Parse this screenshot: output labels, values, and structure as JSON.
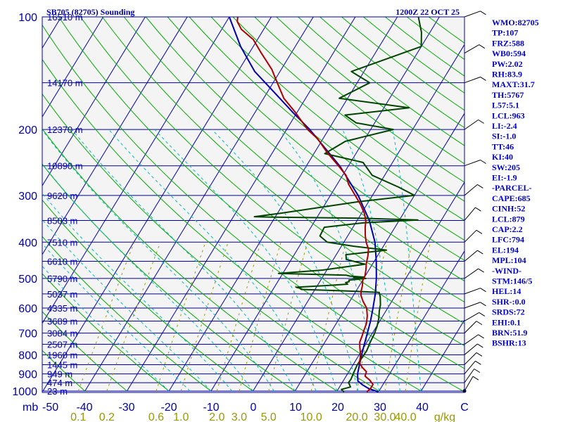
{
  "header": {
    "station": "SB705 (82705) Sounding",
    "time": "1200Z 22 OCT 25"
  },
  "indices": [
    "WMO:82705",
    "TP:107",
    "FRZ:588",
    "WB0:594",
    "PW:2.02",
    "RH:83.9",
    "MAXT:31.7",
    "TH:5767",
    "L57:5.1",
    "LCL:963",
    "LI:-2.4",
    "SI:-1.0",
    "TT:46",
    "KI:40",
    "SW:205",
    "EI:-1.9",
    "-PARCEL-",
    "CAPE:685",
    "CINH:52",
    "LCL:879",
    "CAP:2.2",
    "LFC:794",
    "EL:194",
    "MPL:104",
    "-WIND-",
    "STM:146/5",
    "HEL:14",
    "SHR-:0.0",
    "SRDS:72",
    "EHI:0.1",
    "BRN:51.9",
    "BSHR:13"
  ],
  "colors": {
    "isobar": "#0000aa",
    "isotherm": "#0000aa",
    "dry_adiabat": "#00aa00",
    "moist_adiabat": "#00bbbb",
    "mixing_ratio": "#999900",
    "temperature": "#aa0000",
    "dewpoint": "#004400",
    "parcel": "#0000aa",
    "wind": "#000000"
  },
  "chart_data": {
    "type": "line",
    "title": "SB705 (82705) Sounding",
    "pressure_axis": {
      "unit_label": "mb",
      "scale": "log",
      "range": [
        100,
        1000
      ],
      "ticks": [
        "100",
        "200",
        "300",
        "400",
        "500",
        "600",
        "700",
        "800",
        "900",
        "1000"
      ]
    },
    "temperature_axis": {
      "range": [
        -50,
        50
      ],
      "ticks": [
        "-50",
        "-40",
        "-30",
        "-20",
        "-10",
        "0",
        "10",
        "20",
        "30",
        "40",
        "C"
      ]
    },
    "mixing_ratio_axis": {
      "unit_label": "g/kg",
      "ticks": [
        "0.1",
        "0.2",
        "0.6",
        "1.0",
        "2.0",
        "3.0",
        "5.0",
        "10.0",
        "20.0",
        "30.0",
        "40.0"
      ]
    },
    "height_labels": [
      {
        "p": 100,
        "label": "16510 m"
      },
      {
        "p": 150,
        "label": "14170 m"
      },
      {
        "p": 200,
        "label": "12370 m"
      },
      {
        "p": 250,
        "label": "10890 m"
      },
      {
        "p": 300,
        "label": "9620 m"
      },
      {
        "p": 350,
        "label": "8503 m"
      },
      {
        "p": 400,
        "label": "7510 m"
      },
      {
        "p": 450,
        "label": "6610 m"
      },
      {
        "p": 500,
        "label": "5790 m"
      },
      {
        "p": 550,
        "label": "5037 m"
      },
      {
        "p": 600,
        "label": "4335 m"
      },
      {
        "p": 650,
        "label": "3689 m"
      },
      {
        "p": 700,
        "label": "3084 m"
      },
      {
        "p": 750,
        "label": "2507 m"
      },
      {
        "p": 800,
        "label": "1960 m"
      },
      {
        "p": 850,
        "label": "1445 m"
      },
      {
        "p": 900,
        "label": "949 m"
      },
      {
        "p": 950,
        "label": "474 m"
      },
      {
        "p": 1000,
        "label": "23 m"
      }
    ],
    "series": [
      {
        "key": "temperature",
        "points": [
          [
            1005,
            27.2
          ],
          [
            985,
            27.6
          ],
          [
            960,
            27.6
          ],
          [
            935,
            26.2
          ],
          [
            912,
            24.5
          ],
          [
            888,
            24.2
          ],
          [
            865,
            22.6
          ],
          [
            840,
            21.2
          ],
          [
            815,
            20.7
          ],
          [
            790,
            20
          ],
          [
            765,
            19.1
          ],
          [
            740,
            18.3
          ],
          [
            715,
            18
          ],
          [
            690,
            17.6
          ],
          [
            660,
            17.2
          ],
          [
            630,
            16.3
          ],
          [
            600,
            15
          ],
          [
            575,
            13.1
          ],
          [
            555,
            11.8
          ],
          [
            540,
            11.2
          ],
          [
            525,
            10.8
          ],
          [
            505,
            10
          ],
          [
            492,
            9.9
          ],
          [
            475,
            9.3
          ],
          [
            455,
            8.4
          ],
          [
            435,
            7.7
          ],
          [
            418,
            6.9
          ],
          [
            400,
            5.3
          ],
          [
            385,
            4.2
          ],
          [
            365,
            2.9
          ],
          [
            352,
            2.2
          ],
          [
            336,
            0.8
          ],
          [
            318,
            -1.4
          ],
          [
            300,
            -4.1
          ],
          [
            280,
            -7.3
          ],
          [
            265,
            -9.2
          ],
          [
            250,
            -12.4
          ],
          [
            230,
            -17.1
          ],
          [
            212,
            -21.2
          ],
          [
            200,
            -25
          ],
          [
            180,
            -30.4
          ],
          [
            165,
            -35.2
          ],
          [
            150,
            -39
          ],
          [
            138,
            -42.3
          ],
          [
            125,
            -47.1
          ],
          [
            115,
            -51
          ],
          [
            108,
            -55.3
          ],
          [
            103,
            -57.4
          ],
          [
            100,
            -58
          ]
        ]
      },
      {
        "key": "dewpoint",
        "points": [
          [
            1005,
            21.8
          ],
          [
            990,
            20.8
          ],
          [
            975,
            22.6
          ],
          [
            960,
            22
          ],
          [
            950,
            21.5
          ],
          [
            930,
            21.6
          ],
          [
            905,
            21.4
          ],
          [
            880,
            21.2
          ],
          [
            850,
            21
          ],
          [
            820,
            21.1
          ],
          [
            780,
            21.2
          ],
          [
            740,
            20.8
          ],
          [
            705,
            20.6
          ],
          [
            670,
            20.1
          ],
          [
            640,
            19.4
          ],
          [
            610,
            18.4
          ],
          [
            588,
            17.8
          ],
          [
            560,
            16.6
          ],
          [
            545,
            15.7
          ],
          [
            540,
            7.5
          ],
          [
            535,
            -3.3
          ],
          [
            531,
            -3.8
          ],
          [
            528,
            -4.8
          ],
          [
            522,
            2.9
          ],
          [
            518,
            7
          ],
          [
            513,
            6.3
          ],
          [
            510,
            7
          ],
          [
            505,
            6.7
          ],
          [
            500,
            10.5
          ],
          [
            498,
            7.5
          ],
          [
            496,
            10
          ],
          [
            493,
            6.4
          ],
          [
            490,
            5.3
          ],
          [
            485,
            -11
          ],
          [
            475,
            -1
          ],
          [
            458,
            8.2
          ],
          [
            445,
            3.1
          ],
          [
            432,
            2.3
          ],
          [
            420,
            11.3
          ],
          [
            410,
            2.8
          ],
          [
            400,
            -4
          ],
          [
            385,
            -6.6
          ],
          [
            365,
            -6.8
          ],
          [
            355,
            2
          ],
          [
            349,
            14.4
          ],
          [
            346,
            3.2
          ],
          [
            345,
            -1.1
          ],
          [
            343,
            -20
          ],
          [
            342,
            -25
          ],
          [
            335,
            -19.3
          ],
          [
            312,
            -2.5
          ],
          [
            300,
            10
          ],
          [
            285,
            5
          ],
          [
            265,
            -3
          ],
          [
            245,
            -7
          ],
          [
            232,
            -17.4
          ],
          [
            215,
            -14.3
          ],
          [
            200,
            -4.6
          ],
          [
            192,
            -14.4
          ],
          [
            183,
            -18.2
          ],
          [
            175,
            -4
          ],
          [
            165,
            -22
          ],
          [
            150,
            -17
          ],
          [
            140,
            -23
          ],
          [
            120,
            -10
          ],
          [
            110,
            -12
          ],
          [
            100,
            -15
          ]
        ]
      },
      {
        "key": "parcel",
        "points": [
          [
            1005,
            30
          ],
          [
            985,
            27.2
          ],
          [
            963,
            25.2
          ],
          [
            940,
            23.5
          ],
          [
            900,
            22.4
          ],
          [
            850,
            21.5
          ],
          [
            800,
            20.6
          ],
          [
            750,
            19.7
          ],
          [
            700,
            18.8
          ],
          [
            650,
            17.8
          ],
          [
            600,
            16.5
          ],
          [
            550,
            15
          ],
          [
            500,
            13
          ],
          [
            450,
            10.5
          ],
          [
            400,
            7.4
          ],
          [
            350,
            2.9
          ],
          [
            300,
            -3.4
          ],
          [
            250,
            -12.1
          ],
          [
            200,
            -24.5
          ],
          [
            180,
            -31
          ],
          [
            160,
            -38
          ],
          [
            140,
            -46
          ],
          [
            120,
            -53
          ],
          [
            100,
            -60
          ]
        ]
      }
    ]
  }
}
